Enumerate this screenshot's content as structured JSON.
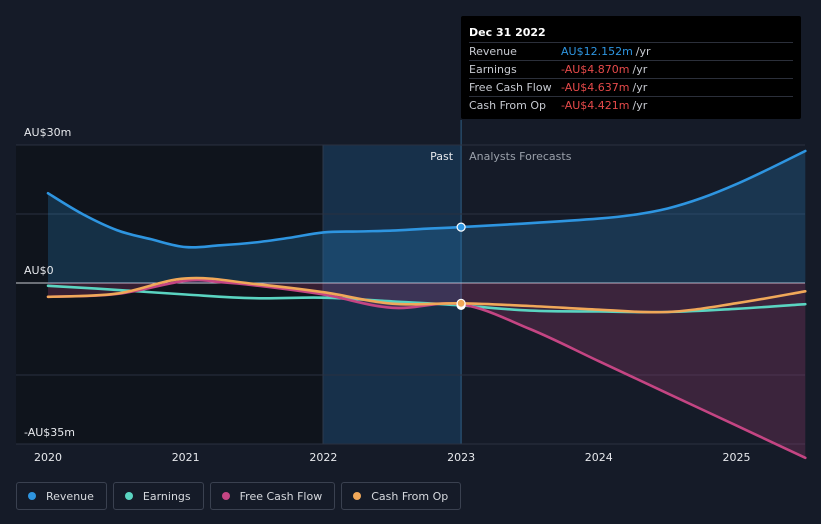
{
  "chart_data": {
    "type": "line",
    "title": "",
    "xlabel": "",
    "ylabel": "",
    "y_ticks": [
      "AU$30m",
      "AU$0",
      "-AU$35m"
    ],
    "x_ticks": [
      "2020",
      "2021",
      "2022",
      "2023",
      "2024",
      "2025"
    ],
    "xlim": [
      2019.8,
      2025.5
    ],
    "ylim": [
      -35,
      30
    ],
    "grid": true,
    "past_label": "Past",
    "forecast_label": "Analysts Forecasts",
    "divider_date": 2023.0,
    "series": [
      {
        "name": "Revenue",
        "color": "#2e95e0",
        "points": [
          [
            2020.0,
            19.5
          ],
          [
            2020.25,
            15.0
          ],
          [
            2020.5,
            11.5
          ],
          [
            2020.75,
            9.5
          ],
          [
            2021.0,
            7.8
          ],
          [
            2021.25,
            8.2
          ],
          [
            2021.5,
            8.8
          ],
          [
            2021.75,
            9.8
          ],
          [
            2022.0,
            11.0
          ],
          [
            2022.25,
            11.2
          ],
          [
            2022.5,
            11.4
          ],
          [
            2022.75,
            11.8
          ],
          [
            2023.0,
            12.15
          ],
          [
            2023.5,
            13.0
          ],
          [
            2024.0,
            14.0
          ],
          [
            2024.25,
            14.8
          ],
          [
            2024.5,
            16.2
          ],
          [
            2024.75,
            18.5
          ],
          [
            2025.0,
            21.5
          ],
          [
            2025.25,
            25.0
          ],
          [
            2025.5,
            28.7
          ]
        ]
      },
      {
        "name": "Earnings",
        "color": "#5ad4c1",
        "points": [
          [
            2020.0,
            -0.6
          ],
          [
            2020.5,
            -1.5
          ],
          [
            2021.0,
            -2.5
          ],
          [
            2021.5,
            -3.3
          ],
          [
            2022.0,
            -3.2
          ],
          [
            2022.5,
            -4.0
          ],
          [
            2023.0,
            -4.87
          ],
          [
            2023.5,
            -6.0
          ],
          [
            2024.0,
            -6.2
          ],
          [
            2024.5,
            -6.3
          ],
          [
            2025.0,
            -5.6
          ],
          [
            2025.5,
            -4.6
          ]
        ]
      },
      {
        "name": "Free Cash Flow",
        "color": "#c44583",
        "points": [
          [
            2020.0,
            -3.0
          ],
          [
            2020.5,
            -2.4
          ],
          [
            2021.0,
            0.5
          ],
          [
            2021.25,
            0.2
          ],
          [
            2021.5,
            -0.5
          ],
          [
            2022.0,
            -2.5
          ],
          [
            2022.5,
            -5.4
          ],
          [
            2023.0,
            -4.64
          ],
          [
            2023.5,
            -10.0
          ],
          [
            2024.0,
            -17.0
          ],
          [
            2024.5,
            -24.0
          ],
          [
            2025.0,
            -31.0
          ],
          [
            2025.5,
            -38.0
          ]
        ]
      },
      {
        "name": "Cash From Op",
        "color": "#f0a859",
        "points": [
          [
            2020.0,
            -3.0
          ],
          [
            2020.5,
            -2.3
          ],
          [
            2021.0,
            1.0
          ],
          [
            2021.5,
            -0.2
          ],
          [
            2022.0,
            -2.0
          ],
          [
            2022.5,
            -4.5
          ],
          [
            2023.0,
            -4.42
          ],
          [
            2023.5,
            -5.0
          ],
          [
            2024.0,
            -5.8
          ],
          [
            2024.5,
            -6.3
          ],
          [
            2025.0,
            -4.4
          ],
          [
            2025.5,
            -1.8
          ]
        ]
      }
    ]
  },
  "tooltip": {
    "date": "Dec 31 2022",
    "rows": [
      {
        "label": "Revenue",
        "value": "AU$12.152m",
        "unit": "/yr",
        "color": "#2e95e0"
      },
      {
        "label": "Earnings",
        "value": "-AU$4.870m",
        "unit": "/yr",
        "color": "#e64a4a"
      },
      {
        "label": "Free Cash Flow",
        "value": "-AU$4.637m",
        "unit": "/yr",
        "color": "#e64a4a"
      },
      {
        "label": "Cash From Op",
        "value": "-AU$4.421m",
        "unit": "/yr",
        "color": "#e64a4a"
      }
    ]
  },
  "legend": [
    {
      "label": "Revenue",
      "color": "#2e95e0"
    },
    {
      "label": "Earnings",
      "color": "#5ad4c1"
    },
    {
      "label": "Free Cash Flow",
      "color": "#c44583"
    },
    {
      "label": "Cash From Op",
      "color": "#f0a859"
    }
  ]
}
